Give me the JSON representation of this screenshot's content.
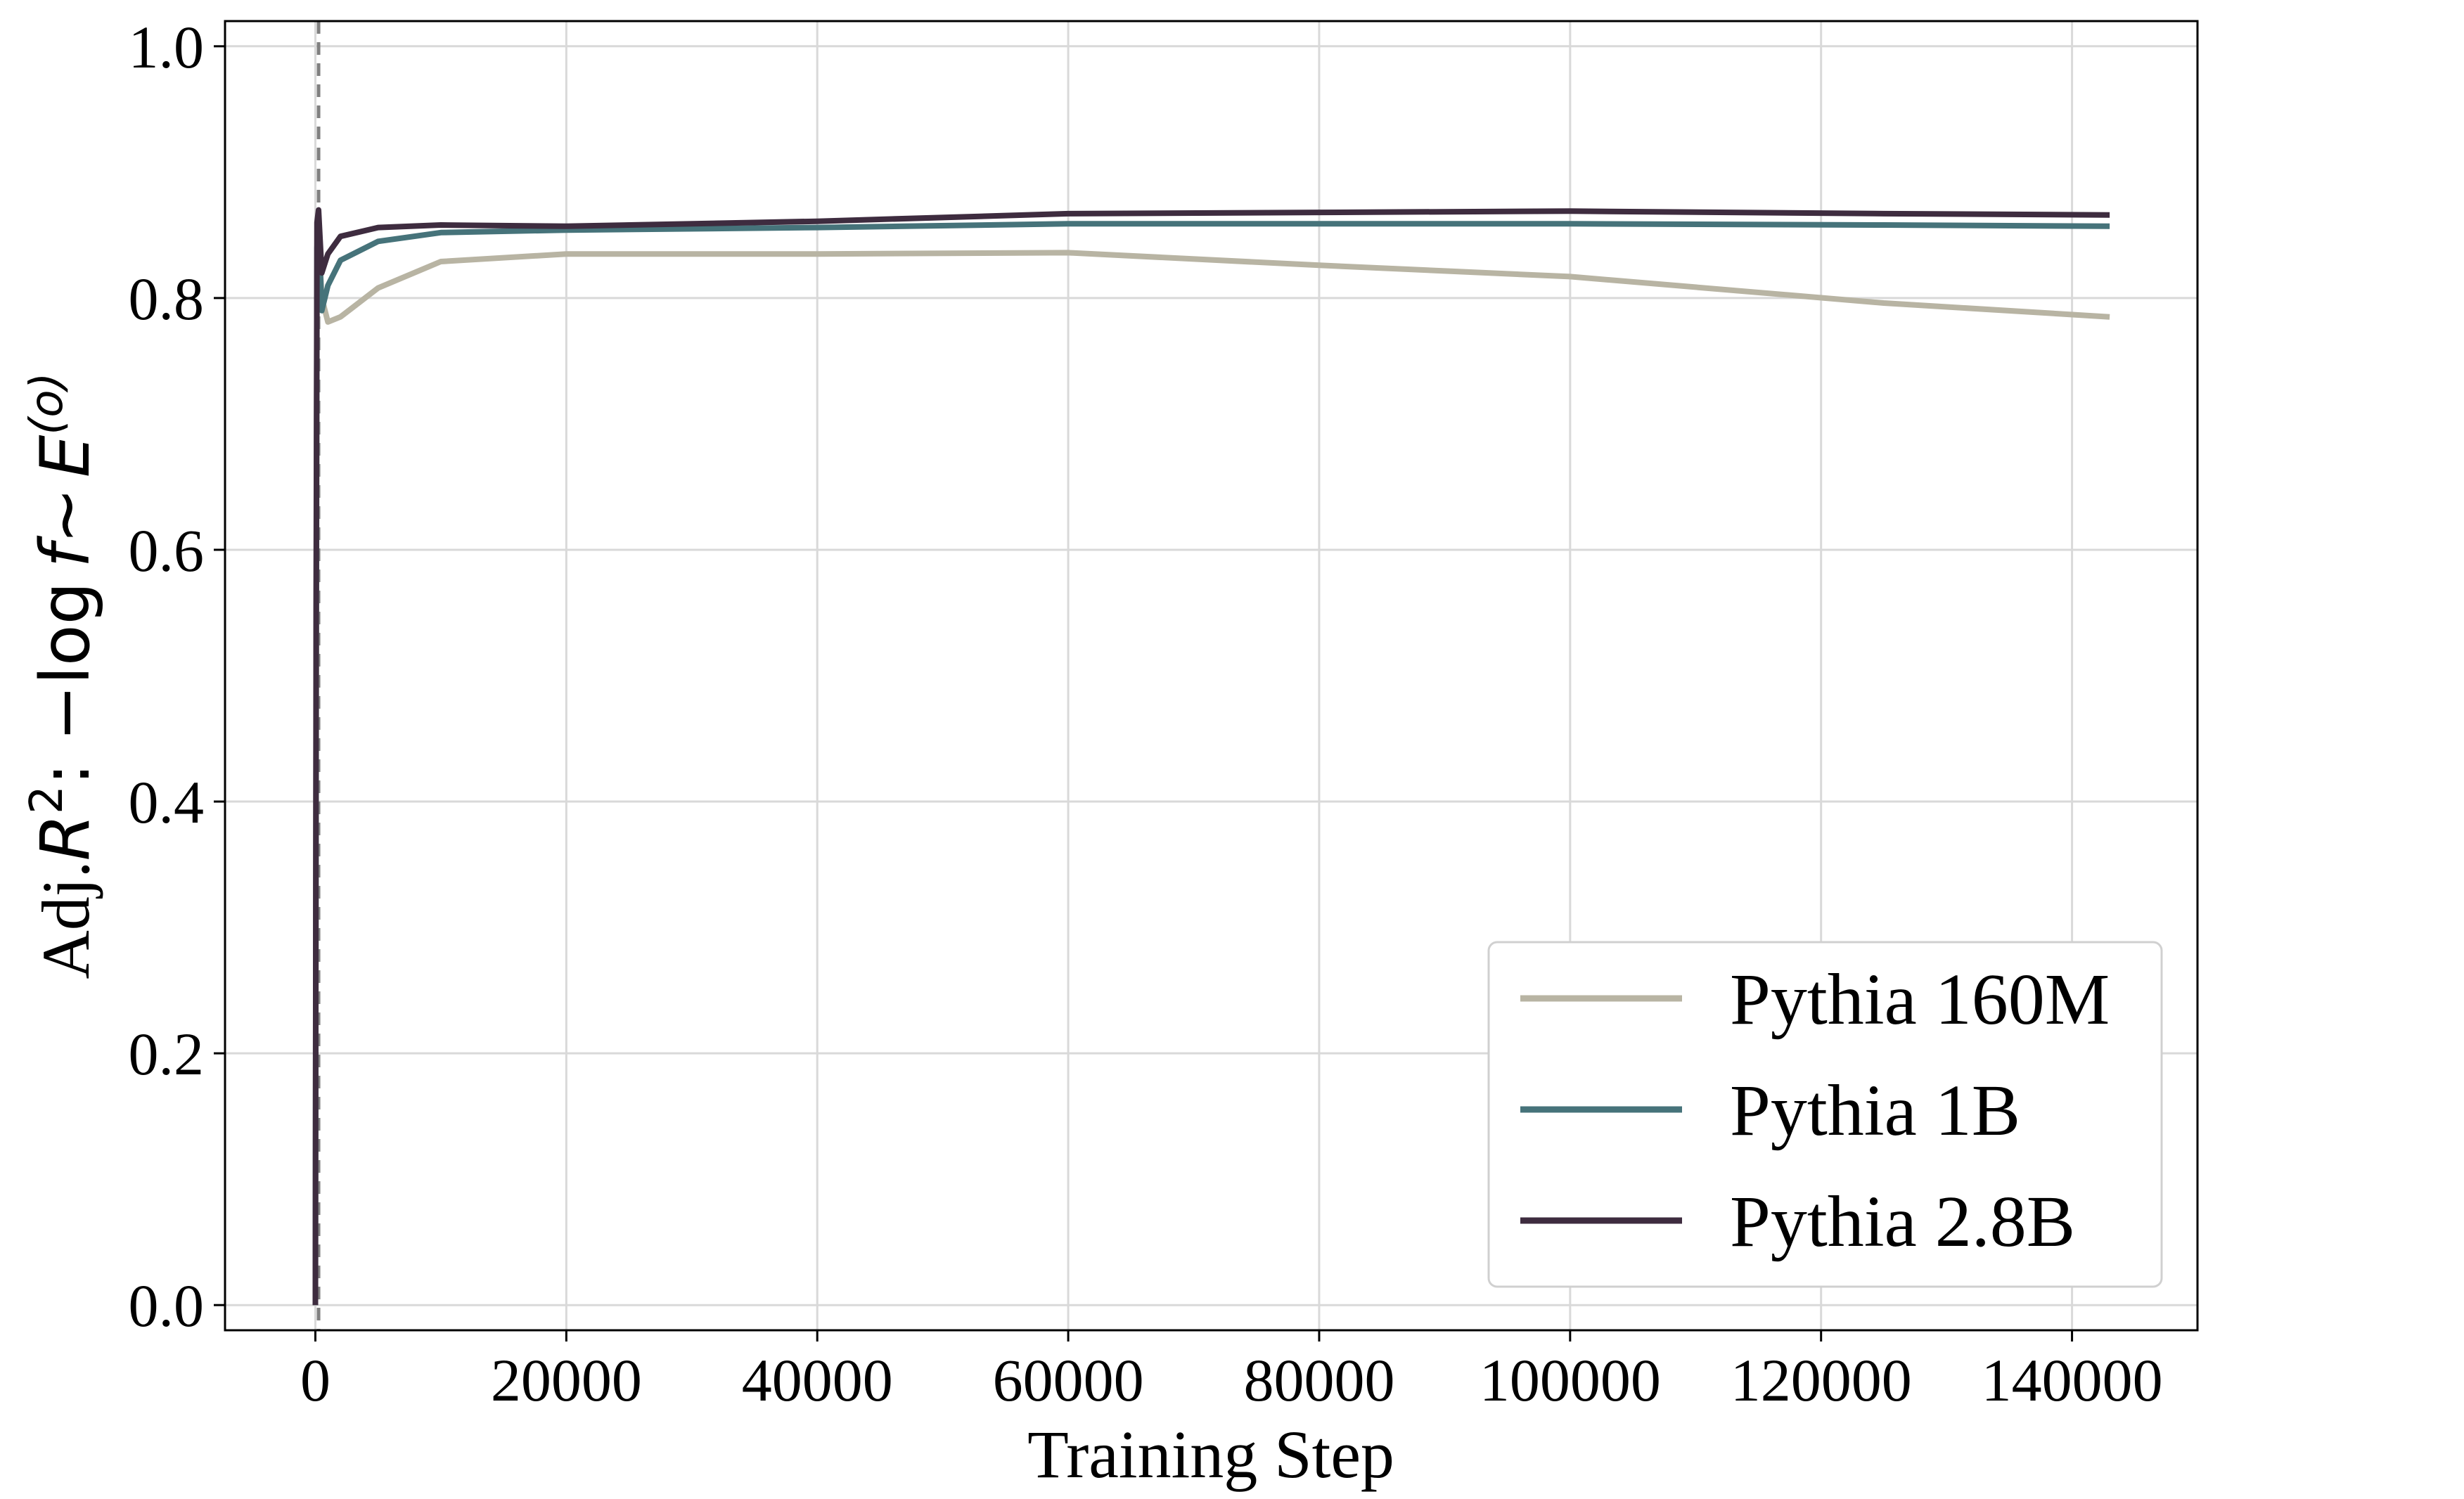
{
  "chart_data": {
    "type": "line",
    "title": "",
    "xlabel": "Training Step",
    "ylabel": {
      "prefix": "Adj.",
      "r": "R",
      "r_sup": "2",
      "colon": ":",
      "minus_log": " −log",
      "f": "f",
      "tilde": "∼",
      "e": "E",
      "e_sup": "(o)"
    },
    "xlim": [
      -7200,
      150000
    ],
    "ylim": [
      -0.02,
      1.02
    ],
    "x_ticks": [
      0,
      20000,
      40000,
      60000,
      80000,
      100000,
      120000,
      140000
    ],
    "x_tick_labels": [
      "0",
      "20000",
      "40000",
      "60000",
      "80000",
      "100000",
      "120000",
      "140000"
    ],
    "y_ticks": [
      0.0,
      0.2,
      0.4,
      0.6,
      0.8,
      1.0
    ],
    "y_tick_labels": [
      "0.0",
      "0.2",
      "0.4",
      "0.6",
      "0.8",
      "1.0"
    ],
    "grid": true,
    "vline": {
      "x": 256,
      "style": "dashed",
      "color": "#808080"
    },
    "legend_position": "lower-right",
    "series": [
      {
        "name": "Pythia 160M",
        "color": "#b8b4a3",
        "x": [
          0,
          64,
          128,
          256,
          512,
          1000,
          2000,
          5000,
          10000,
          20000,
          40000,
          60000,
          80000,
          100000,
          125000,
          143000
        ],
        "y": [
          0.0,
          0.45,
          0.82,
          0.85,
          0.8,
          0.781,
          0.785,
          0.808,
          0.829,
          0.835,
          0.835,
          0.836,
          0.826,
          0.817,
          0.796,
          0.785
        ]
      },
      {
        "name": "Pythia 1B",
        "color": "#46737a",
        "x": [
          0,
          64,
          128,
          256,
          512,
          1000,
          2000,
          5000,
          10000,
          20000,
          40000,
          60000,
          80000,
          100000,
          125000,
          143000
        ],
        "y": [
          0.0,
          0.5,
          0.84,
          0.86,
          0.79,
          0.81,
          0.83,
          0.845,
          0.852,
          0.854,
          0.856,
          0.859,
          0.859,
          0.859,
          0.858,
          0.857
        ]
      },
      {
        "name": "Pythia 2.8B",
        "color": "#3e2c3f",
        "x": [
          0,
          64,
          128,
          256,
          512,
          1000,
          2000,
          5000,
          10000,
          20000,
          40000,
          60000,
          80000,
          100000,
          125000,
          143000
        ],
        "y": [
          0.0,
          0.55,
          0.86,
          0.87,
          0.82,
          0.835,
          0.849,
          0.856,
          0.858,
          0.857,
          0.861,
          0.867,
          0.868,
          0.869,
          0.867,
          0.866
        ]
      }
    ]
  }
}
